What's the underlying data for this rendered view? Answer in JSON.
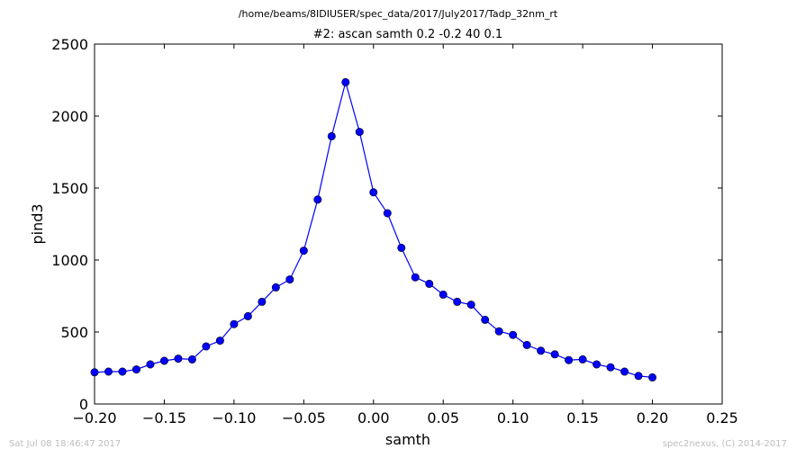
{
  "chart_data": {
    "type": "line",
    "suptitle": "/home/beams/8IDIUSER/spec_data/2017/July2017/Tadp_32nm_rt",
    "title": "#2: ascan  samth 0.2 -0.2  40 0.1",
    "xlabel": "samth",
    "ylabel": "pind3",
    "xlim": [
      -0.2,
      0.25
    ],
    "ylim": [
      0,
      2500
    ],
    "xticks": [
      -0.2,
      -0.15,
      -0.1,
      -0.05,
      0.0,
      0.05,
      0.1,
      0.15,
      0.2,
      0.25
    ],
    "xtick_labels": [
      "−0.20",
      "−0.15",
      "−0.10",
      "−0.05",
      "0.00",
      "0.05",
      "0.10",
      "0.15",
      "0.20",
      "0.25"
    ],
    "yticks": [
      0,
      500,
      1000,
      1500,
      2000,
      2500
    ],
    "ytick_labels": [
      "0",
      "500",
      "1000",
      "1500",
      "2000",
      "2500"
    ],
    "grid": false,
    "series": [
      {
        "color": "#0000ff",
        "marker": "circle",
        "x": [
          -0.2,
          -0.19,
          -0.18,
          -0.17,
          -0.16,
          -0.15,
          -0.14,
          -0.13,
          -0.12,
          -0.11,
          -0.1,
          -0.09,
          -0.08,
          -0.07,
          -0.06,
          -0.05,
          -0.04,
          -0.03,
          -0.02,
          -0.01,
          0.0,
          0.01,
          0.02,
          0.03,
          0.04,
          0.05,
          0.06,
          0.07,
          0.08,
          0.09,
          0.1,
          0.11,
          0.12,
          0.13,
          0.14,
          0.15,
          0.16,
          0.17,
          0.18,
          0.19,
          0.2
        ],
        "y": [
          220,
          225,
          225,
          240,
          275,
          300,
          315,
          310,
          400,
          440,
          555,
          610,
          710,
          810,
          865,
          1065,
          1420,
          1860,
          2235,
          1890,
          1470,
          1325,
          1085,
          880,
          835,
          760,
          710,
          690,
          585,
          505,
          480,
          410,
          370,
          345,
          305,
          310,
          275,
          255,
          225,
          195,
          185
        ]
      }
    ]
  },
  "footer": {
    "timestamp": "Sat Jul 08 18:46:47 2017",
    "credit": "spec2nexus, (C) 2014-2017"
  }
}
